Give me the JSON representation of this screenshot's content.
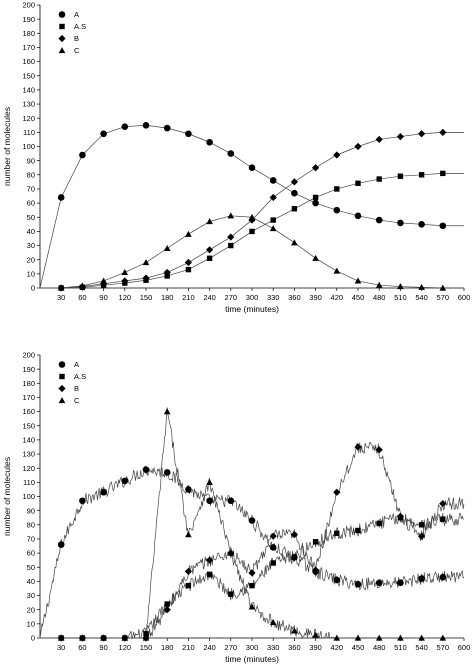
{
  "chart_data": [
    {
      "type": "scatter",
      "xlabel": "time (minutes)",
      "ylabel": "number of molecules",
      "xlim": [
        0,
        600
      ],
      "ylim": [
        0,
        200
      ],
      "xticks": [
        30,
        60,
        90,
        120,
        150,
        180,
        210,
        240,
        270,
        300,
        330,
        360,
        390,
        420,
        450,
        480,
        510,
        540,
        570,
        600
      ],
      "yticks": [
        0,
        10,
        20,
        30,
        40,
        50,
        60,
        70,
        80,
        90,
        100,
        110,
        120,
        130,
        140,
        150,
        160,
        170,
        180,
        190,
        200
      ],
      "grid": false,
      "legend": "top-left",
      "x": [
        30,
        60,
        90,
        120,
        150,
        180,
        210,
        240,
        270,
        300,
        330,
        360,
        390,
        420,
        450,
        480,
        510,
        540,
        570
      ],
      "series": [
        {
          "name": "A",
          "marker": "circle",
          "values": [
            64,
            94,
            109,
            114,
            115,
            113,
            109,
            103,
            95,
            85,
            76,
            67,
            60,
            55,
            51,
            48,
            46,
            45,
            44
          ]
        },
        {
          "name": "A.S",
          "marker": "square",
          "values": [
            0,
            0.5,
            2,
            3.5,
            5.5,
            8.5,
            13,
            21,
            30,
            40,
            48,
            56,
            64,
            70,
            74,
            77,
            79,
            80,
            81
          ]
        },
        {
          "name": "B",
          "marker": "diamond",
          "values": [
            0,
            1,
            3,
            5,
            7,
            11,
            18,
            27,
            36,
            48,
            64,
            75,
            85,
            94,
            100,
            105,
            107,
            109,
            110
          ]
        },
        {
          "name": "C",
          "marker": "triangle",
          "values": [
            0,
            1.5,
            5,
            11,
            18,
            28,
            38,
            47,
            51,
            50,
            42,
            32,
            21,
            12,
            5,
            2,
            1,
            0.5,
            0
          ]
        }
      ]
    },
    {
      "type": "scatter",
      "xlabel": "time (minutes)",
      "ylabel": "number of molecules",
      "xlim": [
        0,
        600
      ],
      "ylim": [
        0,
        200
      ],
      "xticks": [
        30,
        60,
        90,
        120,
        150,
        180,
        210,
        240,
        270,
        300,
        330,
        360,
        390,
        420,
        450,
        480,
        510,
        540,
        570,
        600
      ],
      "yticks": [
        0,
        10,
        20,
        30,
        40,
        50,
        60,
        70,
        80,
        90,
        100,
        110,
        120,
        130,
        140,
        150,
        160,
        170,
        180,
        190,
        200
      ],
      "grid": false,
      "legend": "top-left",
      "x": [
        30,
        60,
        90,
        120,
        150,
        180,
        210,
        240,
        270,
        300,
        330,
        360,
        390,
        420,
        450,
        480,
        510,
        540,
        570
      ],
      "series": [
        {
          "name": "A",
          "marker": "circle",
          "values": [
            66,
            97,
            103,
            111,
            119,
            117,
            105,
            97,
            97,
            83,
            64,
            57,
            47,
            41,
            38,
            39,
            39,
            42,
            43
          ]
        },
        {
          "name": "A.S",
          "marker": "square",
          "values": [
            0,
            0,
            0,
            0,
            3,
            24,
            37,
            45,
            31,
            37,
            53,
            57,
            68,
            74,
            76,
            81,
            85,
            80,
            84
          ]
        },
        {
          "name": "B",
          "marker": "diamond",
          "values": [
            0,
            0,
            0,
            0,
            0,
            20,
            47,
            55,
            60,
            46,
            72,
            73,
            48,
            103,
            135,
            133,
            86,
            72,
            95
          ]
        },
        {
          "name": "C",
          "marker": "triangle",
          "values": [
            0,
            0,
            0,
            0,
            0,
            160,
            73,
            110,
            60,
            22,
            11,
            5,
            2,
            0,
            0,
            0,
            0,
            0,
            0
          ]
        }
      ]
    }
  ]
}
